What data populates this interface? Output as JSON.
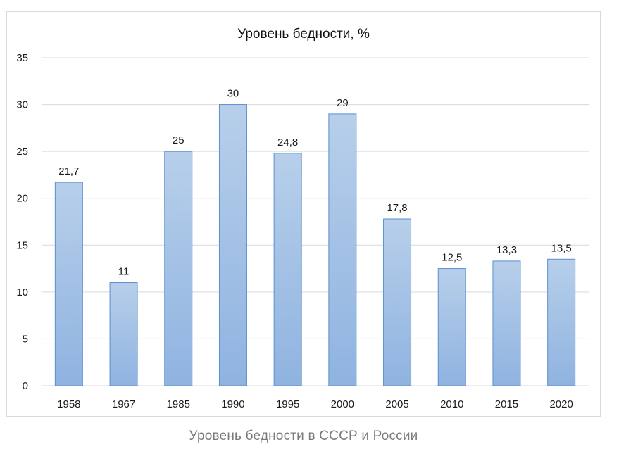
{
  "caption": "Уровень бедности в СССР и России",
  "chart_data": {
    "type": "bar",
    "title": "Уровень бедности, %",
    "xlabel": "",
    "ylabel": "",
    "categories": [
      "1958",
      "1967",
      "1985",
      "1990",
      "1995",
      "2000",
      "2005",
      "2010",
      "2015",
      "2020"
    ],
    "values": [
      21.7,
      11,
      25,
      30,
      24.8,
      29,
      17.8,
      12.5,
      13.3,
      13.5
    ],
    "data_labels": [
      "21,7",
      "11",
      "25",
      "30",
      "24,8",
      "29",
      "17,8",
      "12,5",
      "13,3",
      "13,5"
    ],
    "ylim": [
      0,
      35
    ],
    "yticks": [
      0,
      5,
      10,
      15,
      20,
      25,
      30,
      35
    ],
    "grid": true,
    "legend": "none",
    "colors": {
      "bar_fill_top": "#b7cfea",
      "bar_fill_bottom": "#8fb3e0",
      "bar_stroke": "#5b8fd0",
      "grid": "#d9d9d9"
    }
  }
}
